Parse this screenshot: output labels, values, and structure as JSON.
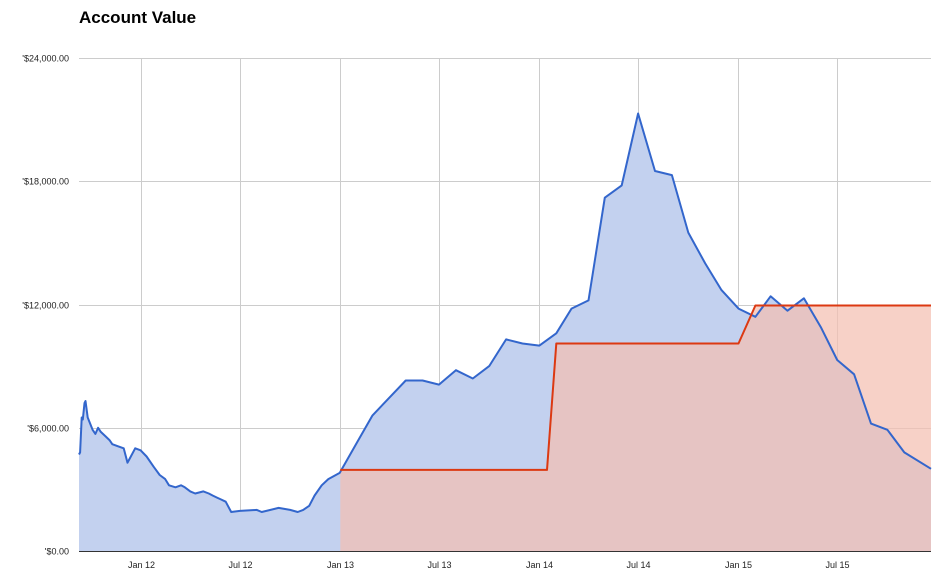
{
  "chart_data": {
    "type": "area",
    "title": "Account Value",
    "xlabel": "",
    "ylabel": "",
    "grid": true,
    "legend": "none",
    "ylim": [
      0,
      24000
    ],
    "xlim": [
      "2011-09-10",
      "2015-12-20"
    ],
    "y_tick_labels": [
      "'$0.00",
      "'$6,000.00",
      "'$12,000.00",
      "'$18,000.00",
      "'$24,000.00"
    ],
    "y_ticks": [
      0,
      6000,
      12000,
      18000,
      24000
    ],
    "x_tick_labels": [
      "Jan 12",
      "Jul 12",
      "Jan 13",
      "Jul 13",
      "Jan 14",
      "Jul 14",
      "Jan 15",
      "Jul 15"
    ],
    "x_ticks": [
      "2012-01-01",
      "2012-07-01",
      "2013-01-01",
      "2013-07-01",
      "2014-01-01",
      "2014-07-01",
      "2015-01-01",
      "2015-07-01"
    ],
    "colors": {
      "series1": "#3366cc",
      "series1_fill": "#c3d1ef",
      "series2": "#dc3912",
      "series2_fill": "#f4bfb2",
      "grid": "#cccccc"
    },
    "series": [
      {
        "x": [
          "2011-09-10",
          "2011-09-12",
          "2011-09-15",
          "2011-09-17",
          "2011-09-20",
          "2011-09-22",
          "2011-09-26",
          "2011-10-05",
          "2011-10-10",
          "2011-10-15",
          "2011-10-20",
          "2011-10-28",
          "2011-11-05",
          "2011-11-10",
          "2011-11-20",
          "2011-12-01",
          "2011-12-08",
          "2011-12-12",
          "2011-12-22",
          "2012-01-01",
          "2012-01-12",
          "2012-01-25",
          "2012-02-05",
          "2012-02-15",
          "2012-02-22",
          "2012-03-05",
          "2012-03-15",
          "2012-03-22",
          "2012-04-01",
          "2012-04-10",
          "2012-04-25",
          "2012-05-05",
          "2012-05-12",
          "2012-05-20",
          "2012-05-28",
          "2012-06-05",
          "2012-06-15",
          "2012-07-01",
          "2012-08-01",
          "2012-08-10",
          "2012-09-10",
          "2012-10-01",
          "2012-10-15",
          "2012-10-25",
          "2012-11-05",
          "2012-11-15",
          "2012-11-28",
          "2012-12-10",
          "2012-12-31",
          "2013-02-01",
          "2013-03-01",
          "2013-05-01",
          "2013-06-01",
          "2013-07-01",
          "2013-08-01",
          "2013-09-01",
          "2013-10-01",
          "2013-11-01",
          "2013-12-01",
          "2014-01-01",
          "2014-02-01",
          "2014-03-01",
          "2014-04-01",
          "2014-05-01",
          "2014-06-01",
          "2014-07-01",
          "2014-08-01",
          "2014-09-01",
          "2014-10-01",
          "2014-11-01",
          "2014-12-01",
          "2015-01-01",
          "2015-02-01",
          "2015-03-01",
          "2015-04-01",
          "2015-05-01",
          "2015-06-01",
          "2015-07-01",
          "2015-08-01",
          "2015-09-01",
          "2015-10-01",
          "2015-11-01",
          "2015-12-20"
        ],
        "values": [
          4700,
          4800,
          6500,
          6400,
          7200,
          7300,
          6500,
          5900,
          5700,
          6000,
          5800,
          5600,
          5400,
          5200,
          5100,
          5000,
          4300,
          4500,
          5000,
          4900,
          4600,
          4100,
          3700,
          3500,
          3200,
          3100,
          3200,
          3100,
          2900,
          2800,
          2900,
          2800,
          2700,
          2600,
          2500,
          2400,
          1900,
          1950,
          2000,
          1900,
          2100,
          2000,
          1900,
          2000,
          2200,
          2700,
          3200,
          3500,
          3800,
          5300,
          6600,
          8300,
          8300,
          8100,
          8800,
          8400,
          9000,
          10300,
          10100,
          10000,
          10600,
          11800,
          12200,
          17200,
          17800,
          21300,
          18500,
          18300,
          15500,
          14000,
          12700,
          11800,
          11400,
          12400,
          11700,
          12300,
          10900,
          9300,
          8600,
          6200,
          5900,
          4800,
          4000
        ]
      },
      {
        "x": [
          "2013-01-01",
          "2014-01-01",
          "2014-01-15",
          "2014-02-01",
          "2015-01-01",
          "2015-02-01",
          "2015-12-20"
        ],
        "values": [
          3950,
          3950,
          3950,
          10100,
          10100,
          11950,
          11950
        ]
      }
    ]
  }
}
